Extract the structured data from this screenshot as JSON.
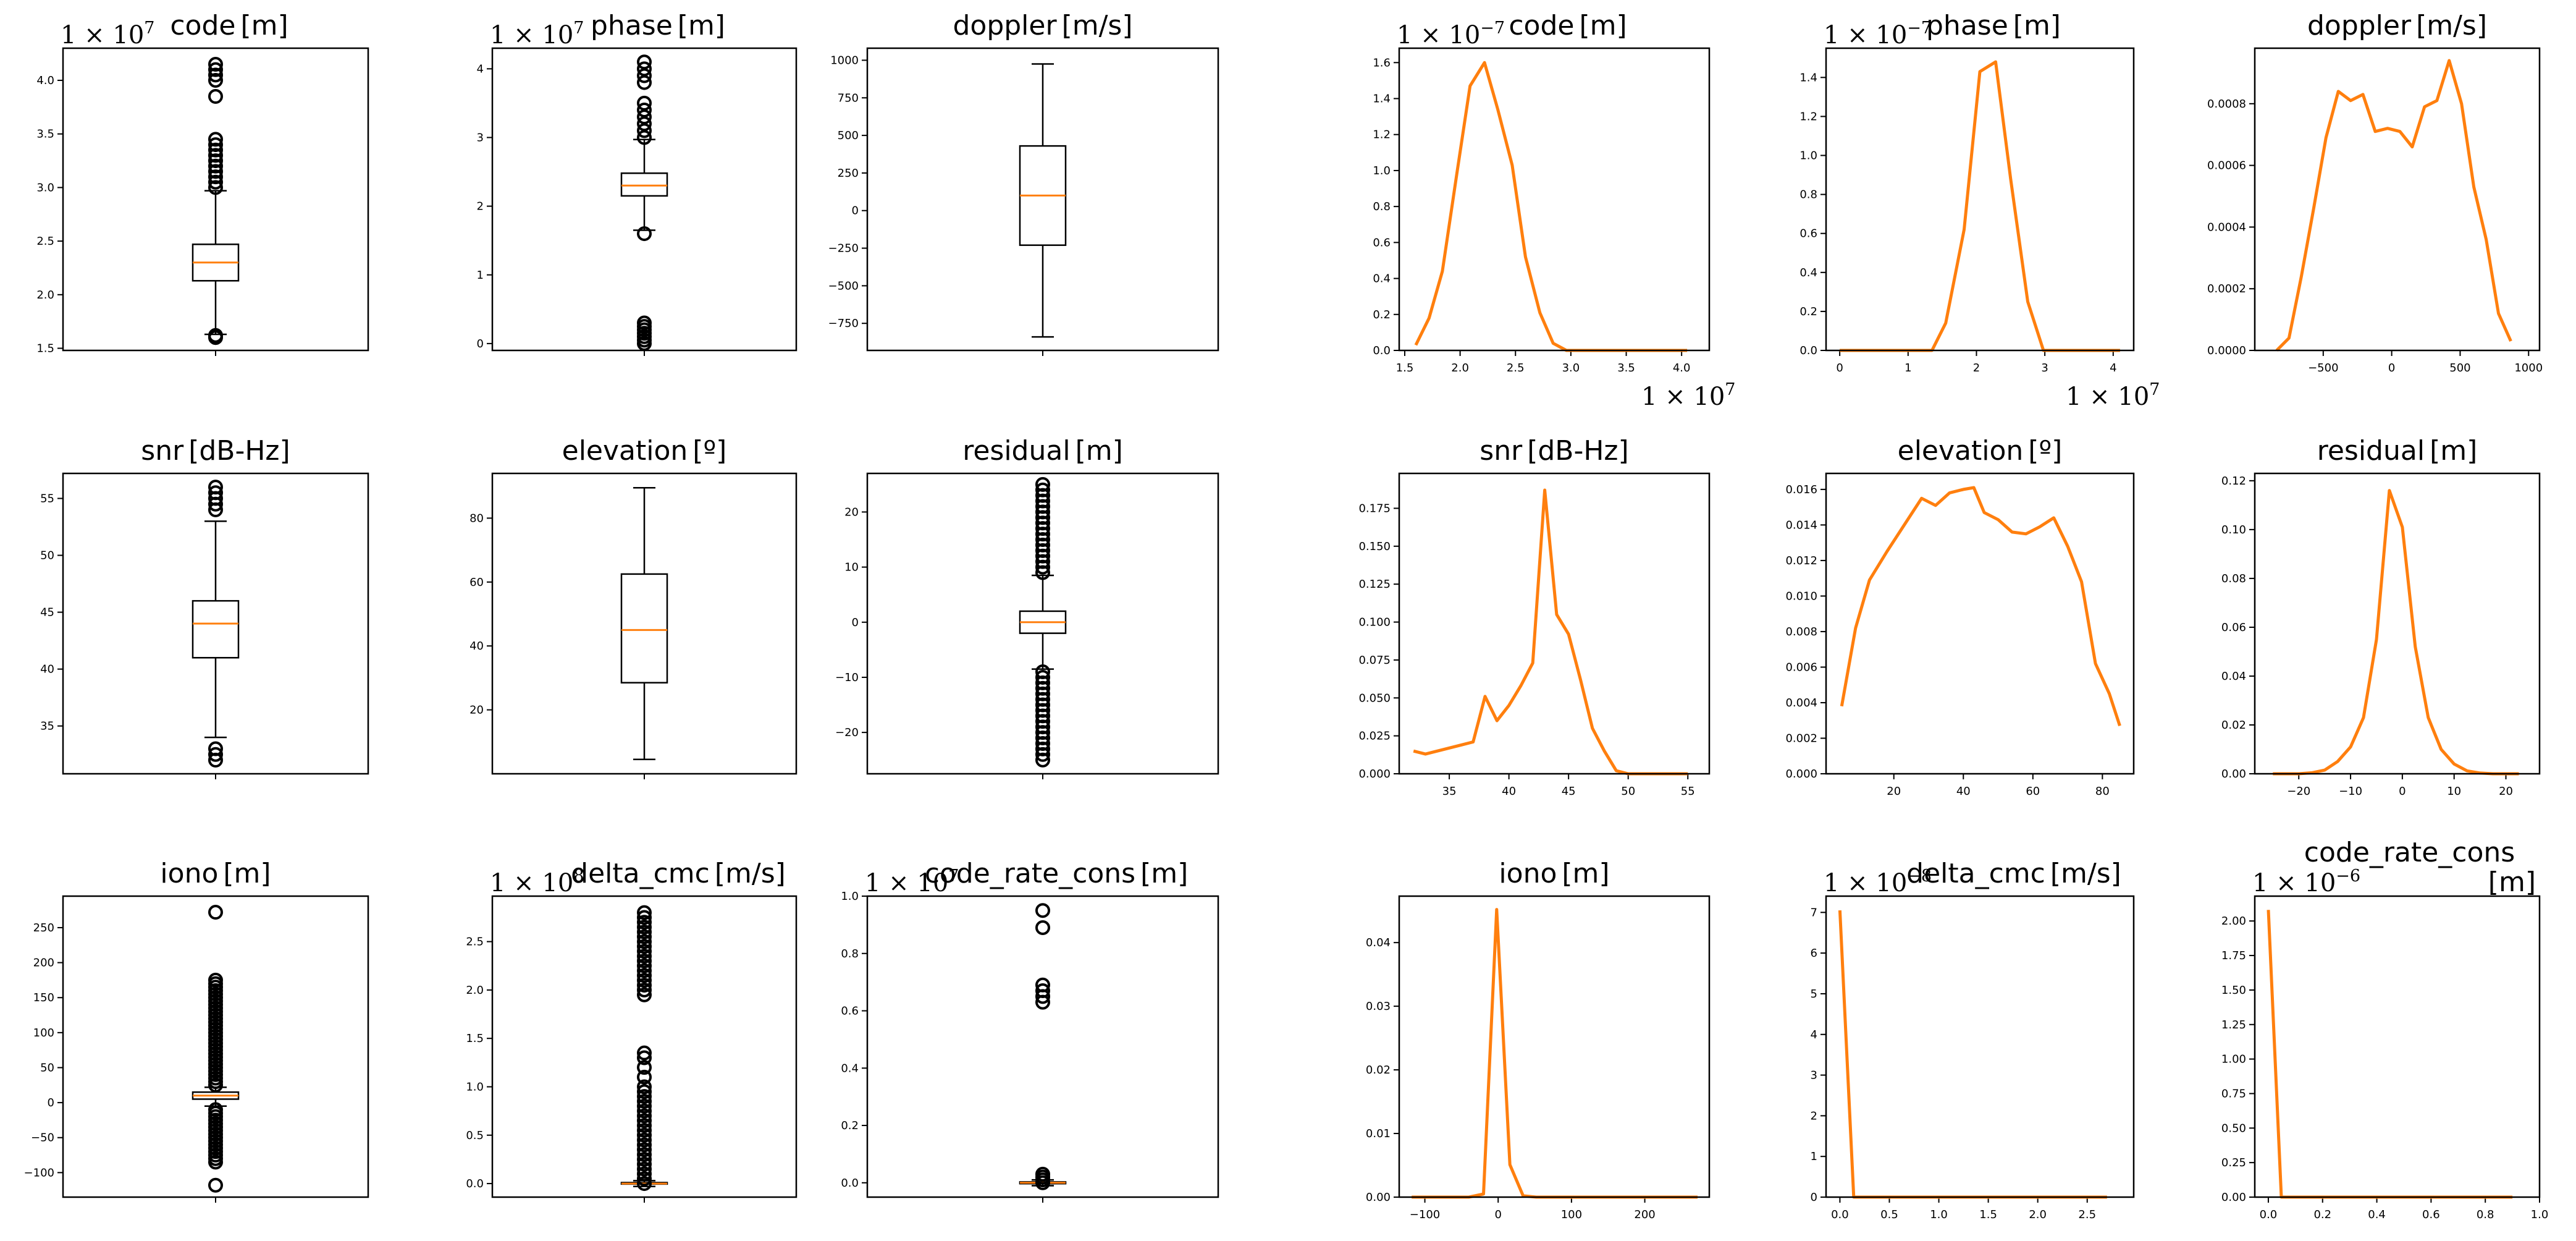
{
  "chart_data": [
    {
      "id": "box-code",
      "type": "box",
      "title": "code",
      "unit": "[m]",
      "offset": "1 × 10^7",
      "ylim": [
        1.48,
        4.3
      ],
      "yticks": [
        1.5,
        2.0,
        2.5,
        3.0,
        3.5,
        4.0
      ],
      "yticklabels": [
        "1.5",
        "2.0",
        "2.5",
        "3.0",
        "3.5",
        "4.0"
      ],
      "q1": 2.13,
      "median": 2.3,
      "q3": 2.47,
      "whisker_low": 1.63,
      "whisker_high": 2.97,
      "fliers": [
        1.6,
        1.62,
        3.0,
        3.05,
        3.1,
        3.15,
        3.2,
        3.25,
        3.3,
        3.35,
        3.4,
        3.45,
        3.85,
        4.0,
        4.05,
        4.1,
        4.15
      ]
    },
    {
      "id": "box-phase",
      "type": "box",
      "title": "phase",
      "unit": "[m]",
      "offset": "1 × 10^7",
      "ylim": [
        -0.1,
        4.3
      ],
      "yticks": [
        0,
        1,
        2,
        3,
        4
      ],
      "yticklabels": [
        "0",
        "1",
        "2",
        "3",
        "4"
      ],
      "q1": 2.15,
      "median": 2.3,
      "q3": 2.48,
      "whisker_low": 1.65,
      "whisker_high": 2.97,
      "fliers": [
        0.0,
        0.05,
        0.1,
        0.15,
        0.2,
        0.25,
        0.3,
        1.6,
        3.0,
        3.1,
        3.2,
        3.3,
        3.4,
        3.5,
        3.8,
        3.9,
        4.0,
        4.1
      ]
    },
    {
      "id": "box-doppler",
      "type": "box",
      "title": "doppler",
      "unit": "[m/s]",
      "offset": "",
      "ylim": [
        -930,
        1080
      ],
      "yticks": [
        -750,
        -500,
        -250,
        0,
        250,
        500,
        750,
        1000
      ],
      "yticklabels": [
        "−750",
        "−500",
        "−250",
        "0",
        "250",
        "500",
        "750",
        "1000"
      ],
      "q1": -230,
      "median": 100,
      "q3": 430,
      "whisker_low": -840,
      "whisker_high": 975,
      "fliers": []
    },
    {
      "id": "line-code",
      "type": "line",
      "title": "code",
      "unit": "[m]",
      "offset_y": "1 × 10^−7",
      "offset_x": "1 × 10^7",
      "xlim": [
        1.45,
        4.25
      ],
      "xticks": [
        1.5,
        2.0,
        2.5,
        3.0,
        3.5,
        4.0
      ],
      "xticklabels": [
        "1.5",
        "2.0",
        "2.5",
        "3.0",
        "3.5",
        "4.0"
      ],
      "ylim": [
        0,
        1.68
      ],
      "yticks": [
        0,
        0.2,
        0.4,
        0.6,
        0.8,
        1.0,
        1.2,
        1.4,
        1.6
      ],
      "yticklabels": [
        "0.0",
        "0.2",
        "0.4",
        "0.6",
        "0.8",
        "1.0",
        "1.2",
        "1.4",
        "1.6"
      ],
      "x": [
        1.6,
        1.72,
        1.84,
        1.97,
        2.09,
        2.22,
        2.34,
        2.47,
        2.59,
        2.72,
        2.84,
        2.96,
        3.1,
        3.3,
        3.5,
        3.7,
        3.9,
        4.05
      ],
      "y": [
        0.03,
        0.18,
        0.44,
        0.98,
        1.47,
        1.6,
        1.34,
        1.03,
        0.52,
        0.21,
        0.04,
        0.0,
        0.0,
        0.0,
        0.0,
        0.0,
        0.0,
        0.0
      ]
    },
    {
      "id": "line-phase",
      "type": "line",
      "title": "phase",
      "unit": "[m]",
      "offset_y": "1 × 10^−7",
      "offset_x": "1 × 10^7",
      "xlim": [
        -0.2,
        4.3
      ],
      "xticks": [
        0,
        1,
        2,
        3,
        4
      ],
      "xticklabels": [
        "0",
        "1",
        "2",
        "3",
        "4"
      ],
      "ylim": [
        0,
        1.55
      ],
      "yticks": [
        0,
        0.2,
        0.4,
        0.6,
        0.8,
        1.0,
        1.2,
        1.4
      ],
      "yticklabels": [
        "0.0",
        "0.2",
        "0.4",
        "0.6",
        "0.8",
        "1.0",
        "1.2",
        "1.4"
      ],
      "x": [
        0.0,
        0.5,
        1.0,
        1.35,
        1.55,
        1.82,
        2.05,
        2.28,
        2.5,
        2.75,
        2.98,
        3.3,
        3.7,
        4.1
      ],
      "y": [
        0.0,
        0.0,
        0.0,
        0.0,
        0.14,
        0.62,
        1.43,
        1.48,
        0.88,
        0.25,
        0.0,
        0.0,
        0.0,
        0.0
      ]
    },
    {
      "id": "line-doppler",
      "type": "line",
      "title": "doppler",
      "unit": "[m/s]",
      "offset": "",
      "xlim": [
        -1000,
        1080
      ],
      "xticks": [
        -500,
        0,
        500,
        1000
      ],
      "xticklabels": [
        "−500",
        "0",
        "500",
        "1000"
      ],
      "ylim": [
        0,
        0.00098
      ],
      "yticks": [
        0,
        0.0002,
        0.0004,
        0.0006,
        0.0008
      ],
      "yticklabels": [
        "0.0000",
        "0.0002",
        "0.0004",
        "0.0006",
        "0.0008"
      ],
      "x": [
        -840,
        -750,
        -660,
        -570,
        -480,
        -390,
        -300,
        -210,
        -120,
        -30,
        60,
        150,
        240,
        330,
        420,
        510,
        600,
        690,
        780,
        870
      ],
      "y": [
        0.0,
        4e-05,
        0.00024,
        0.00046,
        0.00069,
        0.00084,
        0.00081,
        0.00083,
        0.00071,
        0.00072,
        0.00071,
        0.00066,
        0.00079,
        0.00081,
        0.00094,
        0.0008,
        0.00053,
        0.00036,
        0.00012,
        3e-05
      ]
    },
    {
      "id": "box-snr",
      "type": "box",
      "title": "snr",
      "unit": "[dB-Hz]",
      "offset": "",
      "ylim": [
        30.8,
        57.2
      ],
      "yticks": [
        35,
        40,
        45,
        50,
        55
      ],
      "yticklabels": [
        "35",
        "40",
        "45",
        "50",
        "55"
      ],
      "q1": 41.0,
      "median": 44.0,
      "q3": 46.0,
      "whisker_low": 34.0,
      "whisker_high": 53.0,
      "fliers": [
        32.0,
        32.5,
        33.0,
        54.0,
        54.5,
        55.0,
        55.5,
        56.0
      ]
    },
    {
      "id": "box-elevation",
      "type": "box",
      "title": "elevation",
      "unit": "[º]",
      "offset": "",
      "ylim": [
        0,
        94
      ],
      "yticks": [
        20,
        40,
        60,
        80
      ],
      "yticklabels": [
        "20",
        "40",
        "60",
        "80"
      ],
      "q1": 28.5,
      "median": 45.0,
      "q3": 62.5,
      "whisker_low": 4.5,
      "whisker_high": 89.5,
      "fliers": []
    },
    {
      "id": "box-residual",
      "type": "box",
      "title": "residual",
      "unit": "[m]",
      "offset": "",
      "ylim": [
        -27.5,
        27.0
      ],
      "yticks": [
        -20,
        -10,
        0,
        10,
        20
      ],
      "yticklabels": [
        "−20",
        "−10",
        "0",
        "10",
        "20"
      ],
      "q1": -2.0,
      "median": 0.0,
      "q3": 2.0,
      "whisker_low": -8.5,
      "whisker_high": 8.5,
      "fliers": [
        -25,
        -24,
        -23,
        -22,
        -21,
        -20,
        -19,
        -18,
        -17,
        -16,
        -15,
        -14,
        -13,
        -12,
        -11,
        -10,
        -9,
        9,
        10,
        11,
        12,
        13,
        14,
        15,
        16,
        17,
        18,
        19,
        20,
        21,
        22,
        23,
        24,
        25
      ]
    },
    {
      "id": "line-snr",
      "type": "line",
      "title": "snr",
      "unit": "[dB-Hz]",
      "offset": "",
      "xlim": [
        30.8,
        56.8
      ],
      "xticks": [
        35,
        40,
        45,
        50,
        55
      ],
      "xticklabels": [
        "35",
        "40",
        "45",
        "50",
        "55"
      ],
      "ylim": [
        0,
        0.198
      ],
      "yticks": [
        0,
        0.025,
        0.05,
        0.075,
        0.1,
        0.125,
        0.15,
        0.175
      ],
      "yticklabels": [
        "0.000",
        "0.025",
        "0.050",
        "0.075",
        "0.100",
        "0.125",
        "0.150",
        "0.175"
      ],
      "x": [
        32,
        33,
        34,
        35,
        36,
        37,
        38,
        39,
        40,
        41,
        42,
        43,
        44,
        45,
        46,
        47,
        48,
        49,
        50,
        51,
        52,
        53,
        54,
        55
      ],
      "y": [
        0.015,
        0.013,
        0.015,
        0.017,
        0.019,
        0.021,
        0.051,
        0.035,
        0.045,
        0.058,
        0.073,
        0.187,
        0.105,
        0.092,
        0.062,
        0.03,
        0.015,
        0.002,
        0.0,
        0.0,
        0.0,
        0.0,
        0.0,
        0.0
      ]
    },
    {
      "id": "line-elevation",
      "type": "line",
      "title": "elevation",
      "unit": "[º]",
      "offset": "",
      "xlim": [
        0.5,
        89
      ],
      "xticks": [
        20,
        40,
        60,
        80
      ],
      "xticklabels": [
        "20",
        "40",
        "60",
        "80"
      ],
      "ylim": [
        0,
        0.0169
      ],
      "yticks": [
        0,
        0.002,
        0.004,
        0.006,
        0.008,
        0.01,
        0.012,
        0.014,
        0.016
      ],
      "yticklabels": [
        "0.000",
        "0.002",
        "0.004",
        "0.006",
        "0.008",
        "0.010",
        "0.012",
        "0.014",
        "0.016"
      ],
      "x": [
        5,
        9,
        13,
        18,
        23,
        28,
        32,
        36,
        40,
        43,
        46,
        50,
        54,
        58,
        62,
        66,
        70,
        74,
        78,
        82,
        85
      ],
      "y": [
        0.0038,
        0.0082,
        0.0109,
        0.0125,
        0.014,
        0.0155,
        0.0151,
        0.0158,
        0.016,
        0.0161,
        0.0147,
        0.0143,
        0.0136,
        0.0135,
        0.0139,
        0.0144,
        0.0128,
        0.0108,
        0.0062,
        0.0045,
        0.0027
      ]
    },
    {
      "id": "line-residual",
      "type": "line",
      "title": "residual",
      "unit": "[m]",
      "offset": "",
      "xlim": [
        -28.5,
        26.5
      ],
      "xticks": [
        -20,
        -10,
        0,
        10,
        20
      ],
      "xticklabels": [
        "−20",
        "−10",
        "0",
        "10",
        "20"
      ],
      "ylim": [
        0,
        0.123
      ],
      "yticks": [
        0,
        0.02,
        0.04,
        0.06,
        0.08,
        0.1,
        0.12
      ],
      "yticklabels": [
        "0.00",
        "0.02",
        "0.04",
        "0.06",
        "0.08",
        "0.10",
        "0.12"
      ],
      "x": [
        -25,
        -22.5,
        -20,
        -17.5,
        -15,
        -12.5,
        -10,
        -7.5,
        -5,
        -2.5,
        0,
        2.5,
        5,
        7.5,
        10,
        12.5,
        15,
        17.5,
        20,
        22.5
      ],
      "y": [
        0.0,
        0.0,
        0.0,
        0.0004,
        0.0015,
        0.005,
        0.011,
        0.023,
        0.055,
        0.116,
        0.101,
        0.052,
        0.023,
        0.01,
        0.004,
        0.0012,
        0.0003,
        0.0,
        0.0,
        0.0
      ]
    },
    {
      "id": "box-iono",
      "type": "box",
      "title": "iono",
      "unit": "[m]",
      "offset": "",
      "ylim": [
        -135,
        295
      ],
      "yticks": [
        -100,
        -50,
        0,
        50,
        100,
        150,
        200,
        250
      ],
      "yticklabels": [
        "−100",
        "−50",
        "0",
        "50",
        "100",
        "150",
        "200",
        "250"
      ],
      "q1": 5.0,
      "median": 10.0,
      "q3": 15.0,
      "whisker_low": -5.0,
      "whisker_high": 22.0,
      "fliers": [
        -118,
        -85,
        -80,
        -75,
        -70,
        -65,
        -60,
        -55,
        -50,
        -45,
        -40,
        -35,
        -30,
        -25,
        -20,
        -15,
        -10,
        25,
        30,
        35,
        40,
        45,
        50,
        55,
        60,
        65,
        70,
        75,
        80,
        85,
        90,
        95,
        100,
        105,
        110,
        115,
        120,
        125,
        130,
        135,
        140,
        145,
        150,
        155,
        160,
        165,
        170,
        175,
        272
      ]
    },
    {
      "id": "box-delta_cmc",
      "type": "box",
      "title": "delta_cmc",
      "unit": "[m/s]",
      "offset": "1 × 10^8",
      "ylim": [
        -0.14,
        2.97
      ],
      "yticks": [
        0,
        0.5,
        1.0,
        1.5,
        2.0,
        2.5
      ],
      "yticklabels": [
        "0.0",
        "0.5",
        "1.0",
        "1.5",
        "2.0",
        "2.5"
      ],
      "q1": -0.005,
      "median": 0.0,
      "q3": 0.01,
      "whisker_low": -0.03,
      "whisker_high": 0.03,
      "fliers": [
        0.0,
        0.05,
        0.1,
        0.15,
        0.2,
        0.25,
        0.3,
        0.35,
        0.4,
        0.45,
        0.5,
        0.55,
        0.6,
        0.65,
        0.7,
        0.75,
        0.8,
        0.85,
        0.9,
        0.95,
        1.0,
        1.1,
        1.2,
        1.3,
        1.35,
        1.95,
        2.0,
        2.05,
        2.1,
        2.15,
        2.2,
        2.25,
        2.3,
        2.35,
        2.4,
        2.45,
        2.5,
        2.55,
        2.6,
        2.65,
        2.7,
        2.75,
        2.8
      ]
    },
    {
      "id": "box-code_rate_cons",
      "type": "box",
      "title": "code_rate_cons",
      "unit": "[m]",
      "offset": "1 × 10^7",
      "ylim": [
        -0.05,
        1.0
      ],
      "yticks": [
        0,
        0.2,
        0.4,
        0.6,
        0.8,
        1.0
      ],
      "yticklabels": [
        "0.0",
        "0.2",
        "0.4",
        "0.6",
        "0.8",
        "1.0"
      ],
      "q1": -0.003,
      "median": 0.0,
      "q3": 0.003,
      "whisker_low": -0.01,
      "whisker_high": 0.01,
      "fliers": [
        0.0,
        0.01,
        0.02,
        0.03,
        0.63,
        0.65,
        0.67,
        0.69,
        0.89,
        0.95
      ]
    },
    {
      "id": "line-iono",
      "type": "line",
      "title": "iono",
      "unit": "[m]",
      "offset": "",
      "xlim": [
        -135,
        288
      ],
      "xticks": [
        -100,
        0,
        100,
        200
      ],
      "xticklabels": [
        "−100",
        "0",
        "100",
        "200"
      ],
      "ylim": [
        0,
        0.0473
      ],
      "yticks": [
        0,
        0.01,
        0.02,
        0.03,
        0.04
      ],
      "yticklabels": [
        "0.00",
        "0.01",
        "0.02",
        "0.03",
        "0.04"
      ],
      "x": [
        -118,
        -100,
        -80,
        -60,
        -40,
        -20,
        -2,
        16,
        34,
        52,
        70,
        90,
        110,
        130,
        150,
        170,
        190,
        210,
        230,
        250,
        272
      ],
      "y": [
        0.0,
        0.0,
        0.0,
        0.0,
        0.0,
        0.0005,
        0.0452,
        0.0051,
        0.0002,
        0.0,
        0.0,
        0.0,
        0.0,
        0.0,
        0.0,
        0.0,
        0.0,
        0.0,
        0.0,
        0.0,
        0.0
      ]
    },
    {
      "id": "line-delta_cmc",
      "type": "line",
      "title": "delta_cmc",
      "unit": "[m/s]",
      "offset_y": "1 × 10^−8",
      "offset": "",
      "xlim": [
        -0.14,
        2.97
      ],
      "xticks": [
        0,
        0.5,
        1.0,
        1.5,
        2.0,
        2.5
      ],
      "xticklabels": [
        "0.0",
        "0.5",
        "1.0",
        "1.5",
        "2.0",
        "2.5"
      ],
      "ylim": [
        0,
        7.4
      ],
      "yticks": [
        0,
        1,
        2,
        3,
        4,
        5,
        6,
        7
      ],
      "yticklabels": [
        "0",
        "1",
        "2",
        "3",
        "4",
        "5",
        "6",
        "7"
      ],
      "x": [
        0.0,
        0.14,
        0.3,
        0.6,
        0.9,
        1.2,
        1.5,
        1.8,
        2.1,
        2.4,
        2.7
      ],
      "y": [
        7.05,
        0.0,
        0.0,
        0.0,
        0.0,
        0.0,
        0.0,
        0.0,
        0.0,
        0.0,
        0.0
      ]
    },
    {
      "id": "line-code_rate_cons",
      "type": "line",
      "title": "code_rate_cons",
      "unit": "[m]",
      "offset_y": "1 × 10^−6",
      "offset": "",
      "xlim": [
        -0.05,
        1.0
      ],
      "xticks": [
        0,
        0.2,
        0.4,
        0.6,
        0.8,
        1.0
      ],
      "xticklabels": [
        "0.0",
        "0.2",
        "0.4",
        "0.6",
        "0.8",
        "1.0"
      ],
      "ylim": [
        0,
        2.18
      ],
      "yticks": [
        0,
        0.25,
        0.5,
        0.75,
        1.0,
        1.25,
        1.5,
        1.75,
        2.0
      ],
      "yticklabels": [
        "0.00",
        "0.25",
        "0.50",
        "0.75",
        "1.00",
        "1.25",
        "1.50",
        "1.75",
        "2.00"
      ],
      "x": [
        0.0,
        0.048,
        0.1,
        0.2,
        0.3,
        0.4,
        0.5,
        0.6,
        0.7,
        0.8,
        0.9
      ],
      "y": [
        2.08,
        0.0,
        0.0,
        0.0,
        0.0,
        0.0,
        0.0,
        0.0,
        0.0,
        0.0,
        0.0
      ]
    }
  ]
}
